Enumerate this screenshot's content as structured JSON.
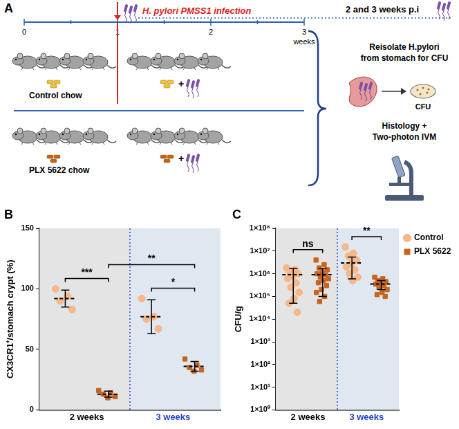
{
  "diagram": {
    "panel_label": "A",
    "timeline": {
      "ticks": [
        0,
        1,
        2,
        3
      ],
      "unit": "weeks"
    },
    "infection": {
      "week": 1,
      "label": "H. pylori PMSS1 infection"
    },
    "endpoint": "2 and 3 weeks p.i",
    "mice_per_group": 4,
    "groups": [
      {
        "label": "Control chow",
        "infected_label": "+"
      },
      {
        "label": "PLX 5622 chow",
        "infected_label": "+"
      }
    ],
    "readouts": [
      {
        "lines": [
          "Reisolate H.pylori",
          "from stomach for CFU"
        ],
        "icon_label": "CFU"
      },
      {
        "lines": [
          "Histology +",
          "Two-photon IVM"
        ]
      }
    ]
  },
  "chart_data": [
    {
      "panel_label": "B",
      "type": "dot_plot",
      "categories": [
        "2 weeks",
        "3 weeks"
      ],
      "ylabel": "CX3CR1⁺/stomach crypt (%)",
      "ylim": [
        0,
        150
      ],
      "yticks": [
        0,
        50,
        100,
        150
      ],
      "grid": false,
      "series": [
        {
          "name": "Control",
          "color": "#f6b889",
          "marker": "circle",
          "values": [
            [
              100,
              94,
              90,
              83
            ],
            [
              92,
              77,
              75,
              67
            ]
          ],
          "mean": [
            92,
            77
          ],
          "sd": [
            7,
            14
          ]
        },
        {
          "name": "PLX 5622",
          "color": "#c4641f",
          "marker": "square",
          "values": [
            [
              16,
              14,
              13,
              11,
              10
            ],
            [
              42,
              37,
              35,
              33,
              32
            ]
          ],
          "mean": [
            13,
            36
          ],
          "sd": [
            2.5,
            4
          ]
        }
      ],
      "comparisons": [
        {
          "label": "***",
          "between": [
            [
              "Control",
              "2 weeks"
            ],
            [
              "PLX 5622",
              "2 weeks"
            ]
          ]
        },
        {
          "label": "*",
          "between": [
            [
              "Control",
              "3 weeks"
            ],
            [
              "PLX 5622",
              "3 weeks"
            ]
          ]
        },
        {
          "label": "**",
          "between": [
            [
              "PLX 5622",
              "2 weeks"
            ],
            [
              "PLX 5622",
              "3 weeks"
            ]
          ]
        }
      ]
    },
    {
      "panel_label": "C",
      "type": "dot_plot",
      "categories": [
        "2 weeks",
        "3 weeks"
      ],
      "ylabel": "CFU/g",
      "log": "y",
      "ylim": [
        1,
        100000000
      ],
      "yticks": [
        {
          "value": 1,
          "label": "1×10⁰"
        },
        {
          "value": 10,
          "label": "1×10¹"
        },
        {
          "value": 100,
          "label": "1×10²"
        },
        {
          "value": 1000,
          "label": "1×10³"
        },
        {
          "value": 10000,
          "label": "1×10⁴"
        },
        {
          "value": 100000,
          "label": "1×10⁵"
        },
        {
          "value": 1000000,
          "label": "1×10⁶"
        },
        {
          "value": 10000000,
          "label": "1×10⁷"
        },
        {
          "value": 100000000,
          "label": "1×10⁸"
        }
      ],
      "grid": false,
      "legend": "top right",
      "series": [
        {
          "name": "Control",
          "color": "#f6b889",
          "marker": "circle",
          "values": [
            [
              1800000,
              1500000,
              1200000,
              1000000,
              800000,
              600000,
              400000,
              250000,
              150000,
              80000,
              50000,
              20000
            ],
            [
              15000000,
              8000000,
              6000000,
              4000000,
              3000000,
              2000000,
              1500000,
              1000000,
              700000,
              500000
            ]
          ],
          "mean": [
            900000,
            3000000
          ],
          "sd": [
            850000,
            2400000
          ]
        },
        {
          "name": "PLX 5622",
          "color": "#c4641f",
          "marker": "square",
          "values": [
            [
              4000000,
              2500000,
              1800000,
              1500000,
              1200000,
              1000000,
              900000,
              700000,
              600000,
              500000,
              400000,
              300000,
              200000,
              150000,
              100000,
              60000
            ],
            [
              700000,
              600000,
              500000,
              450000,
              400000,
              350000,
              300000,
              250000,
              200000,
              150000,
              120000,
              100000
            ]
          ],
          "mean": [
            900000,
            350000
          ],
          "sd": [
            800000,
            150000
          ]
        }
      ],
      "comparisons": [
        {
          "label": "ns",
          "between": [
            [
              "Control",
              "2 weeks"
            ],
            [
              "PLX 5622",
              "2 weeks"
            ]
          ]
        },
        {
          "label": "**",
          "between": [
            [
              "Control",
              "3 weeks"
            ],
            [
              "PLX 5622",
              "3 weeks"
            ]
          ]
        }
      ]
    }
  ]
}
